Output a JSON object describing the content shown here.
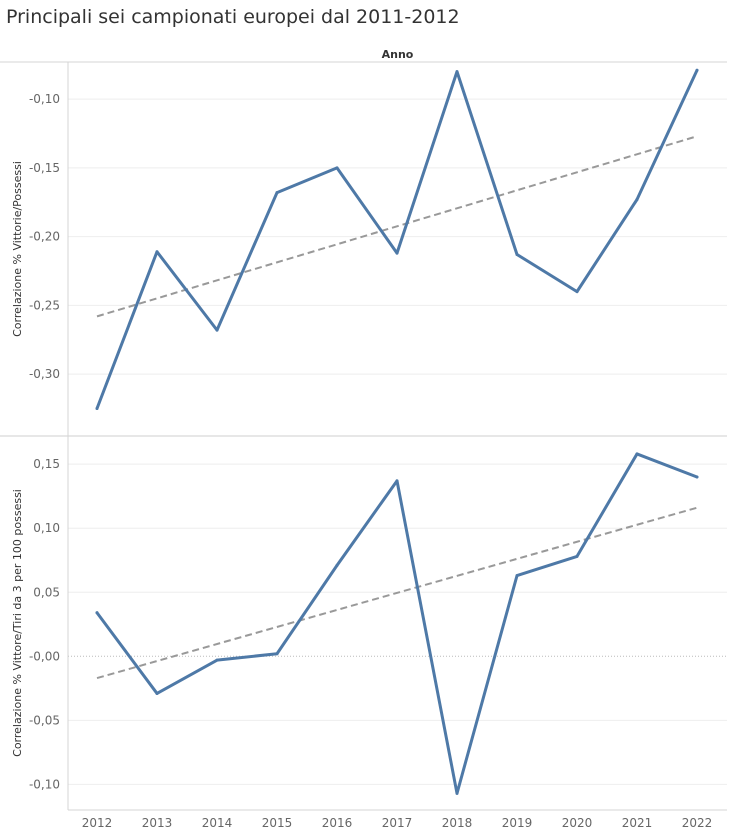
{
  "title": "Principali sei campionati europei dal 2011-2012",
  "chart_data": {
    "type": "line",
    "column_header": "Anno",
    "x": [
      "2012",
      "2013",
      "2014",
      "2015",
      "2016",
      "2017",
      "2018",
      "2019",
      "2020",
      "2021",
      "2022"
    ],
    "panels": [
      {
        "ylabel": "Correlazione % Vittorie/Possessi",
        "ylim": [
          -0.345,
          -0.073
        ],
        "yticks": [
          -0.1,
          -0.15,
          -0.2,
          -0.25,
          -0.3
        ],
        "tick_labels": [
          "-0,10",
          "-0,15",
          "-0,20",
          "-0,25",
          "-0,30"
        ],
        "values": [
          -0.325,
          -0.211,
          -0.268,
          -0.168,
          -0.15,
          -0.212,
          -0.08,
          -0.213,
          -0.24,
          -0.173,
          -0.079
        ],
        "trend": [
          -0.258,
          -0.127
        ],
        "line_color": "#4e79a7",
        "trend_color": "#999999"
      },
      {
        "ylabel": "Correlazione % Vittore/Tiri da 3 per 100 possessi",
        "ylim": [
          -0.12,
          0.172
        ],
        "yticks": [
          0.15,
          0.1,
          0.05,
          0.0,
          -0.05,
          -0.1
        ],
        "tick_labels": [
          "0,15",
          "0,10",
          "0,05",
          "-0,00",
          "-0,05",
          "-0,10"
        ],
        "values": [
          0.034,
          -0.029,
          -0.003,
          0.002,
          0.071,
          0.137,
          -0.107,
          0.063,
          0.078,
          0.158,
          0.14
        ],
        "trend": [
          -0.017,
          0.116
        ],
        "zero_line": true,
        "line_color": "#4e79a7",
        "trend_color": "#999999"
      }
    ],
    "grid": true
  }
}
